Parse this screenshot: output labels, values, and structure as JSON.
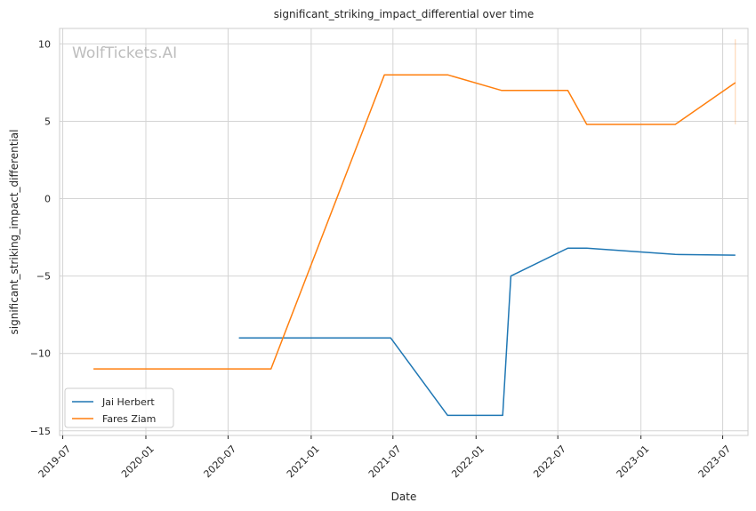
{
  "chart_data": {
    "type": "line",
    "title": "significant_striking_impact_differential over time",
    "xlabel": "Date",
    "ylabel": "significant_striking_impact_differential",
    "watermark": "WolfTickets.AI",
    "x_ticks": [
      "2019-07",
      "2020-01",
      "2020-07",
      "2021-01",
      "2021-07",
      "2022-01",
      "2022-07",
      "2023-01",
      "2023-07"
    ],
    "x_range": [
      "2019-06-24",
      "2023-08-26"
    ],
    "y_ticks": [
      10,
      5,
      0,
      -5,
      -10,
      -15
    ],
    "ylim": [
      -15.3,
      11.0
    ],
    "grid": true,
    "legend_position": "lower-left",
    "series": [
      {
        "name": "Jai Herbert",
        "color": "#1f77b4",
        "points": [
          {
            "x": "2020-07-25",
            "y": -9.0
          },
          {
            "x": "2021-06-26",
            "y": -9.0
          },
          {
            "x": "2021-10-30",
            "y": -14.0
          },
          {
            "x": "2022-03-01",
            "y": -14.0
          },
          {
            "x": "2022-03-19",
            "y": -5.0
          },
          {
            "x": "2022-07-23",
            "y": -3.2
          },
          {
            "x": "2022-09-03",
            "y": -3.2
          },
          {
            "x": "2023-03-18",
            "y": -3.6
          },
          {
            "x": "2023-07-29",
            "y": -3.65
          }
        ]
      },
      {
        "name": "Fares Ziam",
        "color": "#ff7f0e",
        "points": [
          {
            "x": "2019-09-07",
            "y": -11.0
          },
          {
            "x": "2020-10-04",
            "y": -11.0
          },
          {
            "x": "2021-06-12",
            "y": 8.0
          },
          {
            "x": "2021-10-30",
            "y": 8.0
          },
          {
            "x": "2022-02-26",
            "y": 7.0
          },
          {
            "x": "2022-07-23",
            "y": 7.0
          },
          {
            "x": "2022-09-03",
            "y": 4.8
          },
          {
            "x": "2023-03-18",
            "y": 4.8
          },
          {
            "x": "2023-07-29",
            "y": 7.5
          }
        ]
      }
    ],
    "annotation": {
      "x": "2023-07-29",
      "y_from": 4.8,
      "y_to": 10.3,
      "color": "#ff7f0e"
    }
  }
}
